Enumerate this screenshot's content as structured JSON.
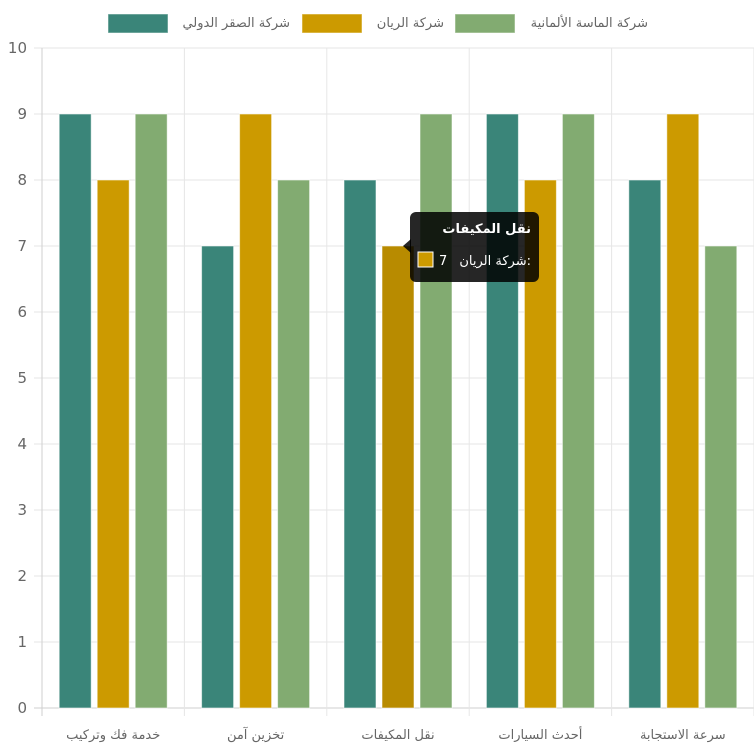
{
  "chart_data": {
    "type": "bar",
    "categories": [
      "خدمة فك وتركيب",
      "تخزين آمن",
      "نقل المكيفات",
      "أحدث السيارات",
      "سرعة الاستجابة"
    ],
    "series": [
      {
        "name": "شركة الصقر الدولي",
        "color": "#3A8579",
        "values": [
          9,
          7,
          8,
          9,
          8
        ]
      },
      {
        "name": "شركة الريان",
        "color": "#CC9A00",
        "values": [
          8,
          9,
          7,
          8,
          9
        ]
      },
      {
        "name": "شركة الماسة الألمانية",
        "color": "#82AB71",
        "values": [
          9,
          8,
          9,
          9,
          7
        ]
      }
    ],
    "ylim": [
      0,
      10
    ],
    "yticks": [
      0,
      1,
      2,
      3,
      4,
      5,
      6,
      7,
      8,
      9,
      10
    ],
    "grid": true,
    "legend_position": "top",
    "hover": {
      "category_index": 2,
      "series_index": 1
    }
  },
  "tooltip": {
    "title": "نقل المكيفات",
    "series_label": "شركة الريان",
    "value_text": "7"
  }
}
